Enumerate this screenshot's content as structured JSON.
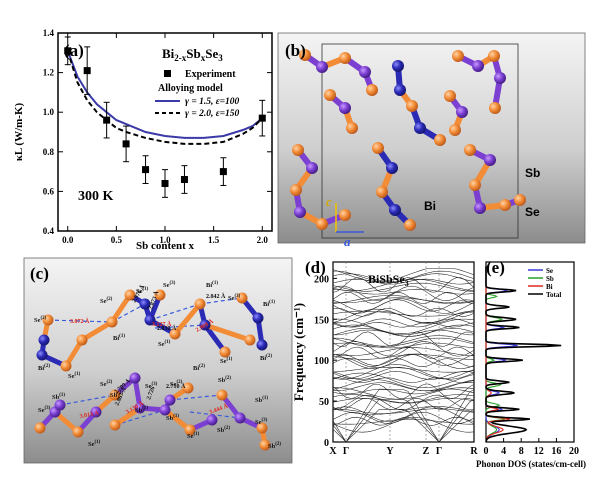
{
  "panel_a": {
    "label": "(a)",
    "formula": {
      "base": "Bi",
      "s1": "2-x",
      "mid": "Sb",
      "s2": "x",
      "end": "Se",
      "s3": "3"
    },
    "temp_label": "300 K",
    "legend": {
      "experiment": "Experiment",
      "model_title": "Alloying model",
      "model1": "γ = 1.5, ε=100",
      "model2": "γ = 2.0, ε=150"
    }
  },
  "panel_b": {
    "label": "(b)",
    "atom_labels": {
      "bi": "Bi",
      "sb": "Sb",
      "se": "Se"
    },
    "axes": {
      "c": "c",
      "a": "a"
    }
  },
  "panel_c": {
    "label": "(c)",
    "top_labels": [
      {
        "t": "Se(2)",
        "x": 100,
        "y": 303
      },
      {
        "t": "Se(1)",
        "x": 136,
        "y": 293
      },
      {
        "t": "Se(3)",
        "x": 163,
        "y": 287
      },
      {
        "t": "Bi(1)",
        "x": 206,
        "y": 287
      },
      {
        "t": "Se(3)",
        "x": 228,
        "y": 300
      },
      {
        "t": "Se(2)",
        "x": 34,
        "y": 322
      },
      {
        "t": "Bi(1)",
        "x": 263,
        "y": 306
      },
      {
        "t": "Bi(2)",
        "x": 38,
        "y": 370
      },
      {
        "t": "Se(1)",
        "x": 68,
        "y": 378
      },
      {
        "t": "Bi(1)",
        "x": 113,
        "y": 340
      },
      {
        "t": "Se(1)",
        "x": 158,
        "y": 346
      },
      {
        "t": "Bi(2)",
        "x": 193,
        "y": 370
      },
      {
        "t": "Se(1)",
        "x": 220,
        "y": 363
      },
      {
        "t": "Bi(2)",
        "x": 260,
        "y": 360
      }
    ],
    "top_bonds": [
      {
        "t": "2.842 Å",
        "x": 206,
        "y": 298,
        "r": 0,
        "red": false
      },
      {
        "t": "2.976 Å",
        "x": 135,
        "y": 303,
        "r": -60,
        "red": false
      },
      {
        "t": "2.873 Å",
        "x": 152,
        "y": 310,
        "r": -70,
        "red": false
      },
      {
        "t": "3.072 Å",
        "x": 70,
        "y": 323,
        "r": 0,
        "red": true
      },
      {
        "t": "3.127 Å",
        "x": 152,
        "y": 326,
        "r": 0,
        "red": true
      },
      {
        "t": "2.909 Å",
        "x": 197,
        "y": 332,
        "r": -30,
        "red": true
      },
      {
        "t": "2.830 Å",
        "x": 157,
        "y": 330,
        "r": 0,
        "red": false
      }
    ],
    "bottom_labels": [
      {
        "t": "Se(2)",
        "x": 100,
        "y": 386
      },
      {
        "t": "Sb(2)",
        "x": 110,
        "y": 397
      },
      {
        "t": "Se(3)",
        "x": 145,
        "y": 388
      },
      {
        "t": "Se(2)",
        "x": 170,
        "y": 386
      },
      {
        "t": "Sb(2)",
        "x": 218,
        "y": 382
      },
      {
        "t": "Sb(1)",
        "x": 52,
        "y": 399
      },
      {
        "t": "Se(3)",
        "x": 38,
        "y": 412
      },
      {
        "t": "Sb(1)",
        "x": 135,
        "y": 412
      },
      {
        "t": "Sb(1)",
        "x": 166,
        "y": 420
      },
      {
        "t": "Sb(1)",
        "x": 255,
        "y": 402
      },
      {
        "t": "Se(3)",
        "x": 255,
        "y": 424
      },
      {
        "t": "Se(1)",
        "x": 88,
        "y": 446
      },
      {
        "t": "Se(1)",
        "x": 187,
        "y": 438
      },
      {
        "t": "Sb(2)",
        "x": 217,
        "y": 432
      },
      {
        "t": "Sb(2)",
        "x": 268,
        "y": 448
      }
    ],
    "bottom_bonds": [
      {
        "t": "2.709 Å",
        "x": 116,
        "y": 394,
        "r": -40,
        "red": false
      },
      {
        "t": "2.867 Å",
        "x": 118,
        "y": 406,
        "r": -65,
        "red": false
      },
      {
        "t": "2.726",
        "x": 150,
        "y": 400,
        "r": -70,
        "red": false
      },
      {
        "t": "2.710 Å",
        "x": 166,
        "y": 388,
        "r": 0,
        "red": false
      },
      {
        "t": "3.013 Å",
        "x": 80,
        "y": 418,
        "r": -10,
        "red": true
      },
      {
        "t": "3.130 Å",
        "x": 127,
        "y": 414,
        "r": -30,
        "red": true
      },
      {
        "t": "3.444 Å",
        "x": 210,
        "y": 414,
        "r": -20,
        "red": true
      }
    ]
  },
  "panel_d": {
    "label": "(d)",
    "compound": "BiSbSe",
    "compound_sub": "3",
    "kpoints": [
      "X",
      "Γ",
      "Y",
      "Z",
      "Γ",
      "R"
    ]
  },
  "panel_e": {
    "label": "(e)",
    "legend": [
      "Se",
      "Sb",
      "Bi",
      "Total"
    ],
    "colors": {
      "se": "#3b3bdb",
      "sb": "#27a127",
      "bi": "#e0281e",
      "total": "#000000"
    }
  },
  "chart_data": [
    {
      "type": "scatter",
      "panel": "a",
      "xlabel": "Sb content x",
      "ylabel": "κL (W/m-K)",
      "xlim": [
        -0.1,
        2.1
      ],
      "ylim": [
        0.4,
        1.4
      ],
      "xticks": [
        "0.0",
        "0.5",
        "1.0",
        "1.5",
        "2.0"
      ],
      "yticks": [
        "0.4",
        "0.6",
        "0.8",
        "1.0",
        "1.2",
        "1.4"
      ],
      "series": [
        {
          "name": "Experiment",
          "x": [
            0.0,
            0.2,
            0.4,
            0.6,
            0.8,
            1.0,
            1.2,
            1.6,
            2.0
          ],
          "y": [
            1.31,
            1.21,
            0.96,
            0.84,
            0.71,
            0.64,
            0.66,
            0.7,
            0.97
          ],
          "err": [
            0.07,
            0.12,
            0.09,
            0.09,
            0.07,
            0.07,
            0.07,
            0.07,
            0.09
          ]
        },
        {
          "name": "γ = 1.5, ε=100",
          "x": [
            0.0,
            0.1,
            0.2,
            0.3,
            0.4,
            0.5,
            0.6,
            0.8,
            1.0,
            1.2,
            1.4,
            1.6,
            1.8,
            1.9,
            2.0
          ],
          "y": [
            1.31,
            1.18,
            1.1,
            1.04,
            1.0,
            0.96,
            0.94,
            0.9,
            0.88,
            0.87,
            0.87,
            0.88,
            0.91,
            0.93,
            0.97
          ]
        },
        {
          "name": "γ = 2.0, ε=150",
          "x": [
            0.0,
            0.1,
            0.2,
            0.3,
            0.4,
            0.5,
            0.6,
            0.8,
            1.0,
            1.2,
            1.4,
            1.6,
            1.8,
            1.9,
            2.0
          ],
          "y": [
            1.31,
            1.15,
            1.06,
            1.0,
            0.96,
            0.92,
            0.9,
            0.87,
            0.85,
            0.84,
            0.84,
            0.85,
            0.89,
            0.92,
            0.97
          ]
        }
      ]
    },
    {
      "type": "line",
      "panel": "d",
      "ylabel": "Frequency (cm⁻¹)",
      "ylim": [
        0,
        220
      ],
      "yticks": [
        "0",
        "50",
        "100",
        "150",
        "200"
      ]
    },
    {
      "type": "line",
      "panel": "e",
      "xlabel": "Phonon DOS (states/cm-cell)",
      "xlim": [
        0,
        20
      ],
      "xticks": [
        "0",
        "4",
        "8",
        "12",
        "16",
        "20"
      ],
      "series": [
        {
          "name": "Se",
          "peaks": [
            [
              15,
              1.0,
              12
            ],
            [
              40,
              1.2,
              5
            ],
            [
              60,
              1.0,
              5
            ],
            [
              100,
              1.5,
              4
            ],
            [
              118,
              2.4,
              4
            ],
            [
              140,
              1.3,
              4
            ],
            [
              185,
              1.6,
              4
            ]
          ]
        },
        {
          "name": "Sb",
          "peaks": [
            [
              15,
              0.8,
              11
            ],
            [
              28,
              1.4,
              4
            ],
            [
              45,
              1.0,
              5
            ],
            [
              70,
              1.1,
              5
            ],
            [
              100,
              0.6,
              4
            ],
            [
              150,
              1.2,
              5
            ],
            [
              178,
              0.8,
              4
            ]
          ]
        },
        {
          "name": "Bi",
          "peaks": [
            [
              15,
              1.3,
              10
            ],
            [
              28,
              1.8,
              4
            ],
            [
              40,
              0.9,
              4
            ],
            [
              60,
              0.4,
              6
            ]
          ]
        },
        {
          "name": "Total",
          "peaks": [
            [
              15,
              2.4,
              11
            ],
            [
              28,
              2.6,
              4
            ],
            [
              40,
              2.0,
              4
            ],
            [
              60,
              1.7,
              5
            ],
            [
              73,
              1.4,
              4
            ],
            [
              100,
              2.2,
              4
            ],
            [
              118,
              4.5,
              4
            ],
            [
              140,
              2.0,
              4
            ],
            [
              150,
              1.8,
              5
            ],
            [
              165,
              1.4,
              4
            ],
            [
              185,
              1.8,
              4
            ]
          ]
        }
      ]
    }
  ]
}
